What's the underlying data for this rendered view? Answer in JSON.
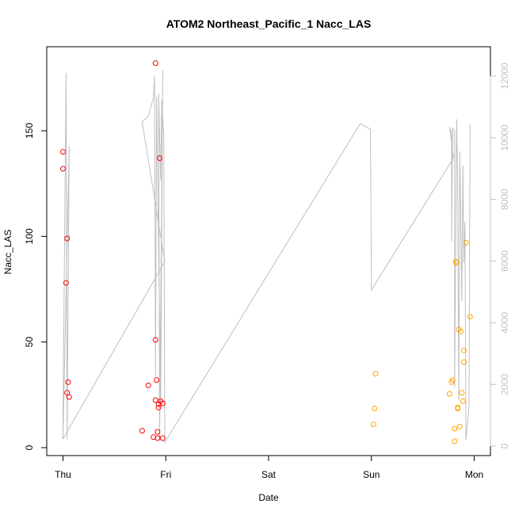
{
  "chart_data": {
    "type": "scatter",
    "title": "ATOM2 Northeast_Pacific_1 Nacc_LAS",
    "xlabel": "Date",
    "ylabel": "Nacc_LAS",
    "x_ticks": [
      "Thu",
      "Fri",
      "Sat",
      "Sun",
      "Mon"
    ],
    "x_range_days": [
      -0.2,
      4.1
    ],
    "ylim": [
      -3,
      188
    ],
    "y_ticks": [
      0,
      50,
      100,
      150
    ],
    "y2lim": [
      -200,
      12200
    ],
    "y2_ticks": [
      0,
      2000,
      4000,
      6000,
      8000,
      10000,
      12000
    ],
    "grid": false,
    "colors": {
      "red": "#ff0000",
      "orange": "#ffa500",
      "line": "#bfbfbf"
    },
    "series": [
      {
        "color": "red",
        "points": [
          [
            0.0,
            140
          ],
          [
            0.0,
            132
          ],
          [
            0.03,
            78
          ],
          [
            0.04,
            99
          ],
          [
            0.04,
            26
          ],
          [
            0.05,
            31
          ],
          [
            0.06,
            24
          ],
          [
            0.77,
            8
          ],
          [
            0.83,
            29.5
          ],
          [
            0.88,
            5
          ],
          [
            0.9,
            182
          ],
          [
            0.9,
            51
          ],
          [
            0.9,
            22.5
          ],
          [
            0.91,
            32
          ],
          [
            0.92,
            7.5
          ],
          [
            0.92,
            4.5
          ],
          [
            0.93,
            19
          ],
          [
            0.93,
            20.5
          ],
          [
            0.94,
            137
          ],
          [
            0.95,
            22
          ],
          [
            0.97,
            21
          ],
          [
            0.97,
            4.5
          ]
        ]
      },
      {
        "color": "orange",
        "points": [
          [
            3.02,
            11
          ],
          [
            3.03,
            18.5
          ],
          [
            3.04,
            35
          ],
          [
            3.76,
            25.5
          ],
          [
            3.78,
            31
          ],
          [
            3.79,
            32
          ],
          [
            3.81,
            9
          ],
          [
            3.81,
            3
          ],
          [
            3.82,
            88
          ],
          [
            3.83,
            87.5
          ],
          [
            3.84,
            19
          ],
          [
            3.84,
            18.5
          ],
          [
            3.85,
            56
          ],
          [
            3.86,
            10
          ],
          [
            3.87,
            55
          ],
          [
            3.88,
            26
          ],
          [
            3.89,
            22
          ],
          [
            3.9,
            40.5
          ],
          [
            3.9,
            46
          ],
          [
            3.92,
            97
          ],
          [
            3.96,
            62
          ]
        ]
      },
      {
        "color": "line",
        "axis": "right",
        "points": [
          [
            0.0,
            230
          ],
          [
            0.0,
            770
          ],
          [
            0.03,
            12100
          ],
          [
            0.04,
            220
          ],
          [
            0.06,
            9730
          ],
          [
            0.06,
            9730
          ],
          [
            0.0,
            230
          ],
          [
            0.99,
            5980
          ],
          [
            0.77,
            10520
          ],
          [
            0.83,
            10700
          ],
          [
            0.88,
            11300
          ],
          [
            0.88,
            11300
          ],
          [
            0.89,
            12000
          ],
          [
            0.9,
            2260
          ],
          [
            0.91,
            11340
          ],
          [
            0.95,
            1410
          ],
          [
            0.97,
            12200
          ],
          [
            0.97,
            12200
          ],
          [
            0.94,
            230
          ],
          [
            0.94,
            240
          ],
          [
            0.93,
            11430
          ],
          [
            0.95,
            8600
          ],
          [
            0.96,
            11220
          ],
          [
            0.98,
            10120
          ],
          [
            0.99,
            120
          ],
          [
            2.89,
            10450
          ],
          [
            2.99,
            10280
          ],
          [
            3.0,
            5060
          ],
          [
            3.03,
            5220
          ],
          [
            3.03,
            5220
          ],
          [
            3.8,
            9350
          ],
          [
            3.76,
            10340
          ],
          [
            3.78,
            10160
          ],
          [
            3.78,
            6650
          ],
          [
            3.79,
            10320
          ],
          [
            3.81,
            10190
          ],
          [
            3.81,
            1900
          ],
          [
            3.83,
            10600
          ],
          [
            3.84,
            8530
          ],
          [
            3.85,
            1480
          ],
          [
            3.86,
            9510
          ],
          [
            3.86,
            9550
          ],
          [
            3.88,
            4700
          ],
          [
            3.89,
            9100
          ],
          [
            3.9,
            5940
          ],
          [
            3.91,
            7260
          ],
          [
            3.92,
            210
          ],
          [
            3.95,
            1290
          ],
          [
            3.96,
            10450
          ]
        ]
      }
    ]
  }
}
